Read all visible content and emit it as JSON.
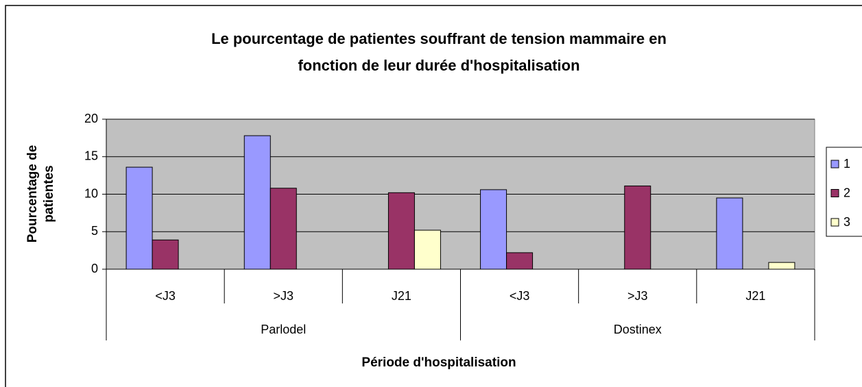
{
  "chart_data": {
    "type": "bar",
    "title": [
      "Le pourcentage de patientes souffrant de tension mammaire en",
      "fonction de leur durée d'hospitalisation"
    ],
    "y_label": [
      "Pourcentage de",
      "patientes"
    ],
    "x_label": "Période d'hospitalisation",
    "categories": [
      "<J3",
      ">J3",
      "J21",
      "<J3",
      ">J3",
      "J21"
    ],
    "groups": [
      "Parlodel",
      "Dostinex"
    ],
    "series": [
      {
        "name": "1",
        "color": "#9999ff",
        "values": [
          13.6,
          17.8,
          0,
          10.6,
          0,
          9.5
        ]
      },
      {
        "name": "2",
        "color": "#993366",
        "values": [
          3.9,
          10.8,
          10.2,
          2.2,
          11.1,
          0
        ]
      },
      {
        "name": "3",
        "color": "#ffffcc",
        "values": [
          0,
          0,
          5.2,
          0,
          0,
          0.9
        ]
      }
    ],
    "ylim": [
      0,
      20
    ],
    "yticks": [
      0,
      5,
      10,
      15,
      20
    ],
    "grid": true,
    "legend": "right"
  }
}
